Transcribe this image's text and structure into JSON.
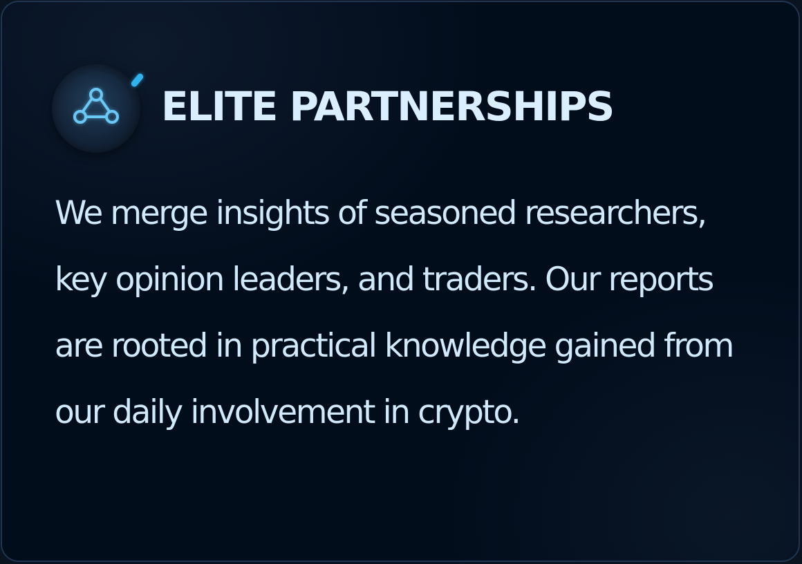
{
  "card": {
    "title": "ELITE PARTNERSHIPS",
    "icon": "partnership-network-icon",
    "description": "We merge insights of seasoned researchers, key opinion leaders, and traders. Our reports are rooted in practical knowledge gained from our daily involvement in crypto."
  },
  "colors": {
    "background": "#020d1c",
    "border": "#1f3550",
    "title": "#d9efff",
    "body": "#d0e9fb",
    "accent": "#2fb2ee",
    "icon_stroke": "#69c8f5"
  }
}
